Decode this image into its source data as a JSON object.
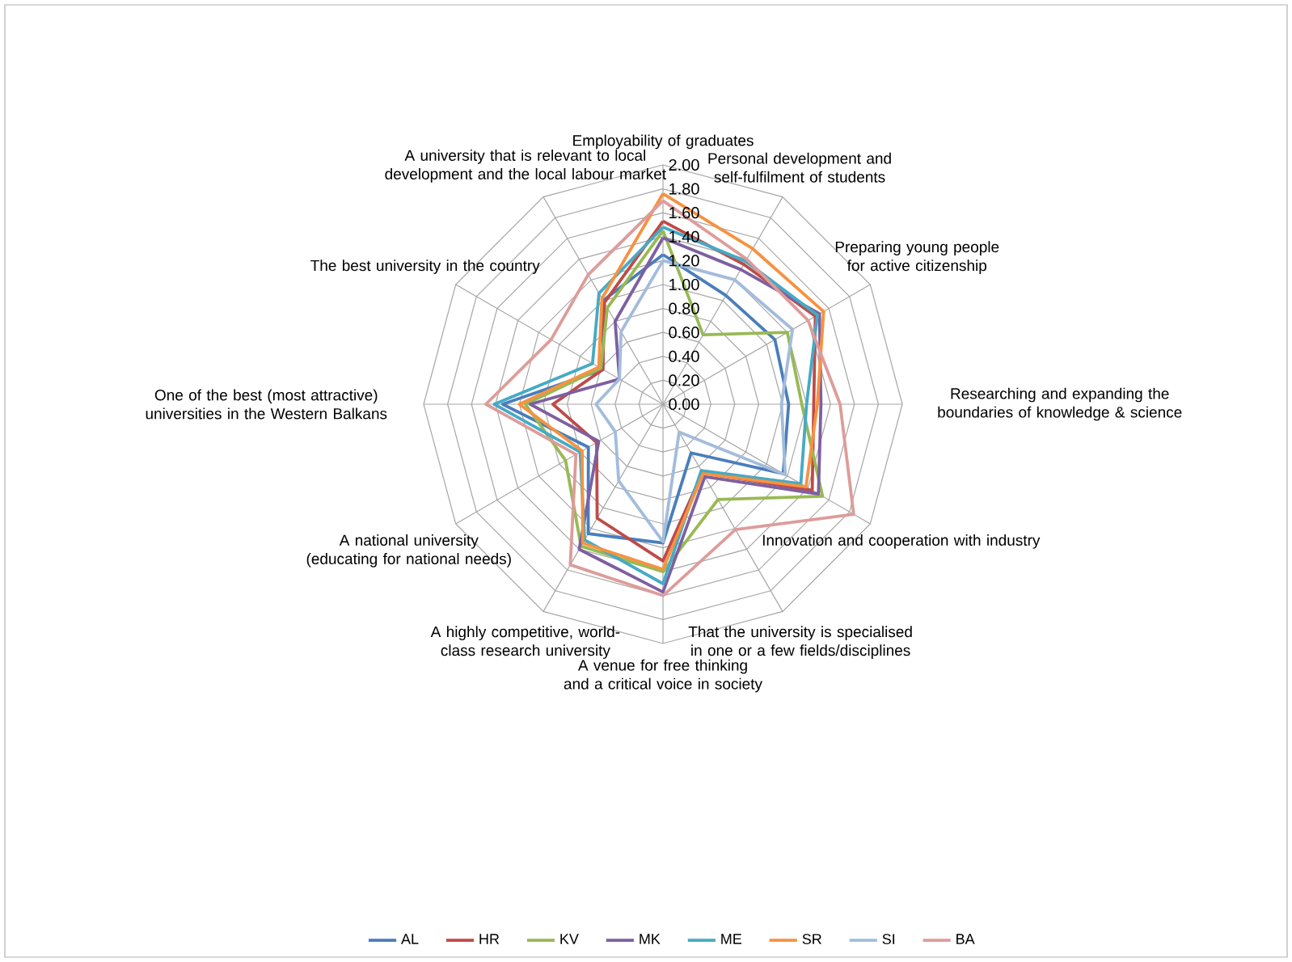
{
  "chart_data": {
    "type": "radar",
    "categories": [
      "Employability of graduates",
      "Personal development and self-fulfilment of students",
      "Preparing young people for active citizenship",
      "Researching and expanding the boundaries of knowledge & science",
      "Innovation and cooperation with industry",
      "That the university is specialised in one or a few fields/disciplines",
      "A venue for free thinking and a critical voice in society",
      "A highly competitive, world-class research university",
      "A national university (educating for national needs)",
      "One of the best (most attractive) universities in the Western Balkans",
      "The best university in the country",
      "A university that is relevant to local development and the local labour market"
    ],
    "ylim": [
      0,
      2
    ],
    "yticks": [
      {
        "value": 0,
        "label": "0.00"
      },
      {
        "value": 0.2,
        "label": "0.20"
      },
      {
        "value": 0.4,
        "label": "0.40"
      },
      {
        "value": 0.6,
        "label": "0.60"
      },
      {
        "value": 0.8,
        "label": "0.80"
      },
      {
        "value": 1.0,
        "label": "1.00"
      },
      {
        "value": 1.2,
        "label": "1.20"
      },
      {
        "value": 1.4,
        "label": "1.40"
      },
      {
        "value": 1.6,
        "label": "1.60"
      },
      {
        "value": 1.8,
        "label": "1.80"
      },
      {
        "value": 2.0,
        "label": "2.00"
      }
    ],
    "grid": true,
    "legend": "bottom",
    "line_style": "solid",
    "series": [
      {
        "name": "AL",
        "color": "#4a7ebb",
        "values": [
          1.25,
          1.05,
          1.08,
          1.05,
          1.16,
          0.47,
          1.16,
          1.25,
          0.72,
          1.34,
          0.58,
          1.0
        ]
      },
      {
        "name": "HR",
        "color": "#be4b48",
        "values": [
          1.53,
          1.35,
          1.47,
          1.26,
          1.44,
          0.66,
          1.31,
          1.1,
          0.64,
          0.92,
          0.58,
          0.98
        ]
      },
      {
        "name": "KV",
        "color": "#98b954",
        "values": [
          1.45,
          0.67,
          1.2,
          1.16,
          1.54,
          0.92,
          1.4,
          1.37,
          0.94,
          1.15,
          0.6,
          0.93
        ]
      },
      {
        "name": "MK",
        "color": "#7d60a0",
        "values": [
          1.39,
          1.3,
          1.51,
          1.32,
          1.5,
          0.7,
          1.57,
          1.4,
          0.62,
          1.11,
          0.42,
          0.8
        ]
      },
      {
        "name": "ME",
        "color": "#46aac5",
        "values": [
          1.48,
          1.38,
          1.49,
          1.2,
          1.33,
          0.64,
          1.5,
          1.31,
          0.8,
          1.41,
          0.68,
          1.07
        ]
      },
      {
        "name": "SR",
        "color": "#f69240",
        "values": [
          1.76,
          1.5,
          1.55,
          1.29,
          1.38,
          0.67,
          1.38,
          1.34,
          0.78,
          1.2,
          0.62,
          1.02
        ]
      },
      {
        "name": "SI",
        "color": "#a3bcdc",
        "values": [
          1.2,
          1.2,
          1.25,
          0.99,
          1.18,
          0.27,
          1.15,
          0.74,
          0.46,
          0.56,
          0.42,
          0.7
        ]
      },
      {
        "name": "BA",
        "color": "#dd9c9a",
        "values": [
          1.7,
          1.4,
          1.4,
          1.48,
          1.84,
          1.21,
          1.6,
          1.55,
          0.84,
          1.48,
          1.08,
          1.25
        ]
      }
    ]
  }
}
